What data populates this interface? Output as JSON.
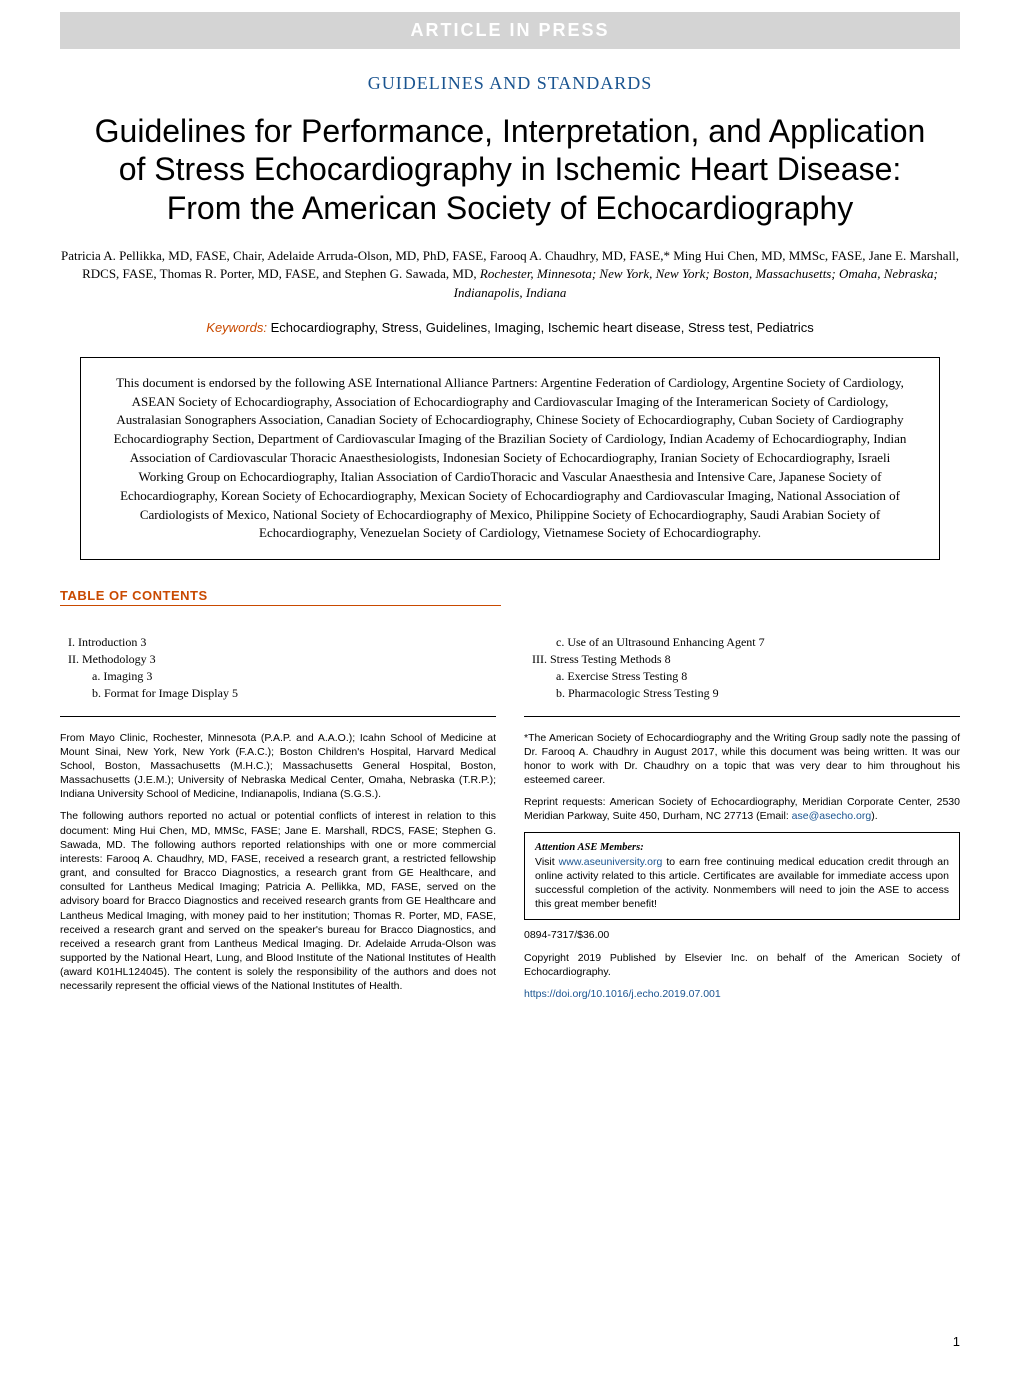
{
  "banner": "ARTICLE IN PRESS",
  "section_label": "GUIDELINES AND STANDARDS",
  "title": "Guidelines for Performance, Interpretation, and Application of Stress Echocardiography in Ischemic Heart Disease: From the American Society of Echocardiography",
  "authors_line": "Patricia A. Pellikka, MD, FASE, Chair, Adelaide Arruda-Olson, MD, PhD, FASE, Farooq A. Chaudhry, MD, FASE,* Ming Hui Chen, MD, MMSc, FASE, Jane E. Marshall, RDCS, FASE, Thomas R. Porter, MD, FASE, and Stephen G. Sawada, MD, ",
  "authors_affil": "Rochester, Minnesota; New York, New York; Boston, Massachusetts; Omaha, Nebraska; Indianapolis, Indiana",
  "keywords_label": "Keywords:",
  "keywords_text": " Echocardiography, Stress, Guidelines, Imaging, Ischemic heart disease, Stress test, Pediatrics",
  "endorsement": "This document is endorsed by the following ASE International Alliance Partners: Argentine Federation of Cardiology, Argentine Society of Cardiology, ASEAN Society of Echocardiography, Association of Echocardiography and Cardiovascular Imaging of the Interamerican Society of Cardiology, Australasian Sonographers Association, Canadian Society of Echocardiography, Chinese Society of Echocardiography, Cuban Society of Cardiography Echocardiography Section, Department of Cardiovascular Imaging of the Brazilian Society of Cardiology, Indian Academy of Echocardiography, Indian Association of Cardiovascular Thoracic Anaesthesiologists, Indonesian Society of Echocardiography, Iranian Society of Echocardiography, Israeli Working Group on Echocardiography, Italian Association of CardioThoracic and Vascular Anaesthesia and Intensive Care, Japanese Society of Echocardiography, Korean Society of Echocardiography, Mexican Society of Echocardiography and Cardiovascular Imaging, National Association of Cardiologists of Mexico, National Society of Echocardiography of Mexico, Philippine Society of Echocardiography, Saudi Arabian Society of Echocardiography, Venezuelan Society of Cardiology, Vietnamese Society of Echocardiography.",
  "toc_heading": "TABLE OF CONTENTS",
  "toc": {
    "left": [
      {
        "text": "I. Introduction     3",
        "cls": "toc-main"
      },
      {
        "text": "II. Methodology     3",
        "cls": "toc-main"
      },
      {
        "text": "a. Imaging     3",
        "cls": "toc-sub"
      },
      {
        "text": "b. Format for Image Display     5",
        "cls": "toc-sub"
      }
    ],
    "right": [
      {
        "text": "c. Use of an Ultrasound Enhancing Agent     7",
        "cls": "toc-sub"
      },
      {
        "text": "III. Stress Testing Methods     8",
        "cls": "toc-main"
      },
      {
        "text": "a. Exercise Stress Testing     8",
        "cls": "toc-sub"
      },
      {
        "text": "b. Pharmacologic Stress Testing     9",
        "cls": "toc-sub"
      }
    ]
  },
  "left_para1": "From Mayo Clinic, Rochester, Minnesota (P.A.P. and A.A.O.); Icahn School of Medicine at Mount Sinai, New York, New York (F.A.C.); Boston Children's Hospital, Harvard Medical School, Boston, Massachusetts (M.H.C.); Massachusetts General Hospital, Boston, Massachusetts (J.E.M.); University of Nebraska Medical Center, Omaha, Nebraska (T.R.P.); Indiana University School of Medicine, Indianapolis, Indiana (S.G.S.).",
  "left_para2": "The following authors reported no actual or potential conflicts of interest in relation to this document: Ming Hui Chen, MD, MMSc, FASE; Jane E. Marshall, RDCS, FASE; Stephen G. Sawada, MD. The following authors reported relationships with one or more commercial interests: Farooq A. Chaudhry, MD, FASE, received a research grant, a restricted fellowship grant, and consulted for Bracco Diagnostics, a research grant from GE Healthcare, and consulted for Lantheus Medical Imaging; Patricia A. Pellikka, MD, FASE, served on the advisory board for Bracco Diagnostics and received research grants from GE Healthcare and Lantheus Medical Imaging, with money paid to her institution; Thomas R. Porter, MD, FASE, received a research grant and served on the speaker's bureau for Bracco Diagnostics, and received a research grant from Lantheus Medical Imaging. Dr. Adelaide Arruda-Olson was supported by the National Heart, Lung, and Blood Institute of the National Institutes of Health (award K01HL124045). The content is solely the responsibility of the authors and does not necessarily represent the official views of the National Institutes of Health.",
  "right_para1": "*The American Society of Echocardiography and the Writing Group sadly note the passing of Dr. Farooq A. Chaudhry in August 2017, while this document was being written. It was our honor to work with Dr. Chaudhry on a topic that was very dear to him throughout his esteemed career.",
  "right_para2a": "Reprint requests: American Society of Echocardiography, Meridian Corporate Center, 2530 Meridian Parkway, Suite 450, Durham, NC 27713 (Email: ",
  "right_email": "ase@asecho.org",
  "right_para2b": ").",
  "attention_title": "Attention ASE Members:",
  "attention_body_a": "Visit ",
  "attention_link": "www.aseuniversity.org",
  "attention_body_b": " to earn free continuing medical education credit through an online activity related to this article. Certificates are available for immediate access upon successful completion of the activity. Nonmembers will need to join the ASE to access this great member benefit!",
  "price_line": "0894-7317/$36.00",
  "copyright_line": "Copyright 2019 Published by Elsevier Inc. on behalf of the American Society of Echocardiography.",
  "doi": "https://doi.org/10.1016/j.echo.2019.07.001",
  "page_number": "1",
  "colors": {
    "banner_bg": "#d4d4d4",
    "banner_text": "#ffffff",
    "section_label": "#1a5490",
    "accent": "#c94a00",
    "link": "#1a5490"
  }
}
